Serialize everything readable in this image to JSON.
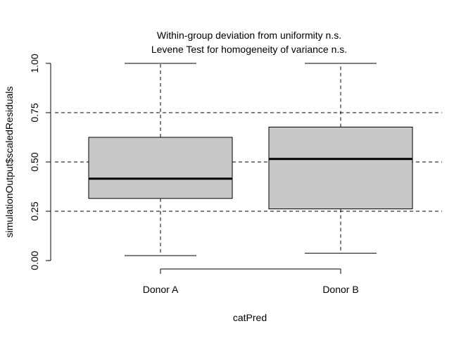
{
  "chart_data": {
    "type": "box",
    "title_lines": [
      "Within-group deviation from uniformity n.s.",
      "Levene Test for homogeneity of variance n.s."
    ],
    "xlabel": "catPred",
    "ylabel": "simulationOutput$scaledResiduals",
    "ylim": [
      0,
      1
    ],
    "y_ticks": [
      0,
      0.25,
      0.5,
      0.75,
      1
    ],
    "y_tick_labels": [
      "0.00",
      "0.25",
      "0.50",
      "0.75",
      "1.00"
    ],
    "reference_lines": [
      0.25,
      0.5,
      0.75
    ],
    "categories": [
      "Donor A",
      "Donor B"
    ],
    "boxes": [
      {
        "category": "Donor A",
        "min": 0.025,
        "q1": 0.315,
        "median": 0.415,
        "q3": 0.625,
        "max": 1.0
      },
      {
        "category": "Donor B",
        "min": 0.037,
        "q1": 0.262,
        "median": 0.515,
        "q3": 0.677,
        "max": 1.0
      }
    ],
    "box_fill": "#c8c8c8",
    "grid": false
  }
}
